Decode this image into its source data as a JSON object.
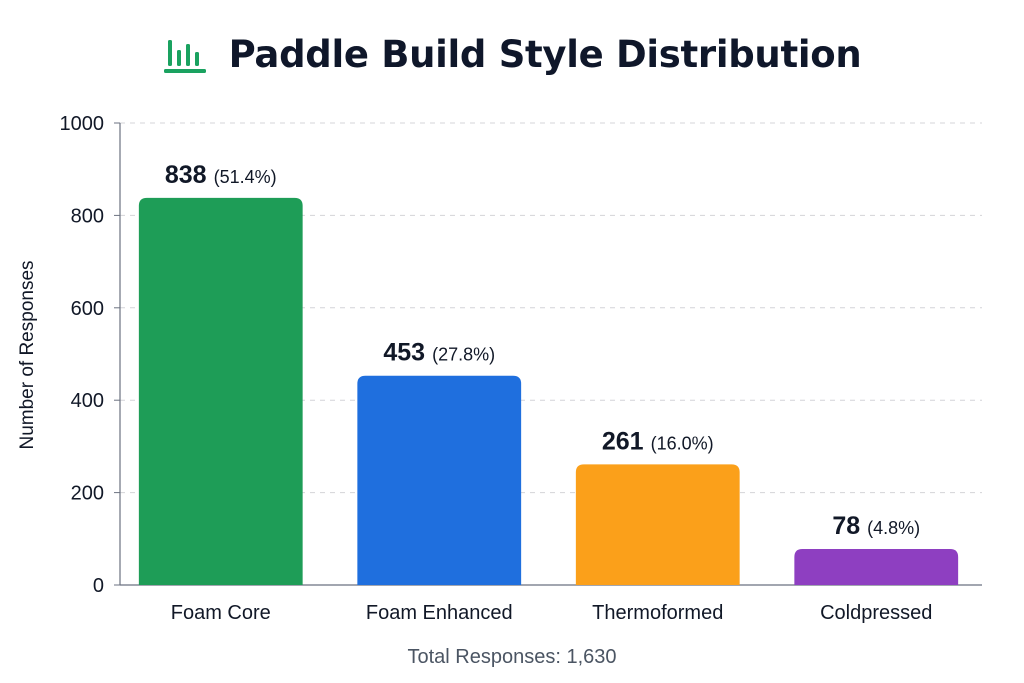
{
  "header": {
    "title": "Paddle Build Style Distribution",
    "icon": "bar-chart-icon",
    "icon_color": "#1aa260"
  },
  "footer": {
    "total_label": "Total Responses: 1,630"
  },
  "chart_data": {
    "type": "bar",
    "title": "Paddle Build Style Distribution",
    "xlabel": "",
    "ylabel": "Number of Responses",
    "ylim": [
      0,
      1000
    ],
    "yticks": [
      0,
      200,
      400,
      600,
      800,
      1000
    ],
    "grid": true,
    "categories": [
      "Foam Core",
      "Foam Enhanced",
      "Thermoformed",
      "Coldpressed"
    ],
    "values": [
      838,
      453,
      261,
      78
    ],
    "percent_labels": [
      "(51.4%)",
      "(27.8%)",
      "(16.0%)",
      "(4.8%)"
    ],
    "colors": [
      "#1e9d57",
      "#1f6fde",
      "#fba01a",
      "#8e3fc1"
    ]
  }
}
